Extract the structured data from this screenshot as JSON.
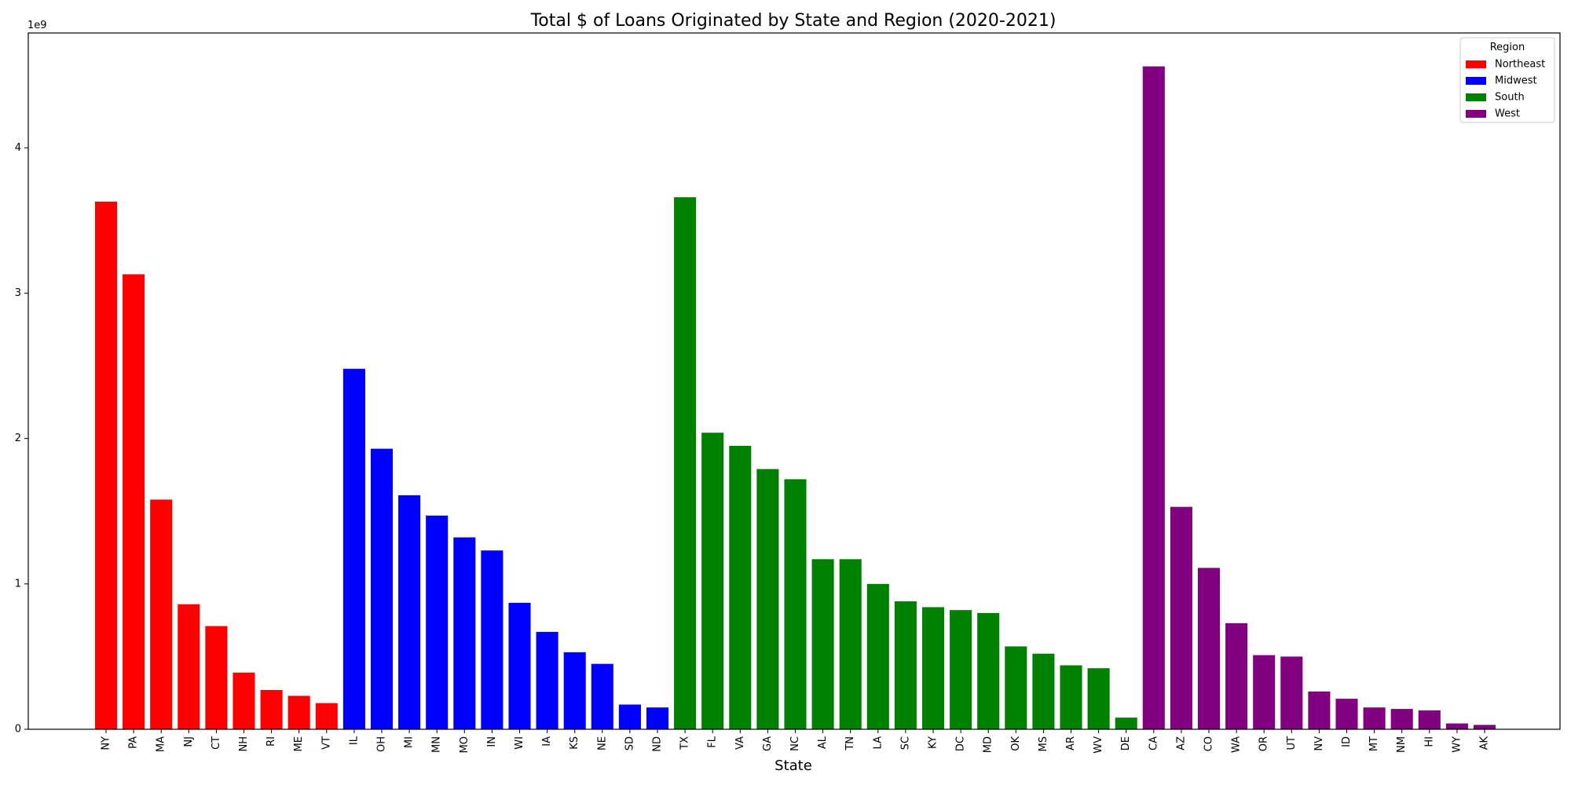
{
  "chart_data": {
    "type": "bar",
    "title": "Total $ of Loans Originated by State and Region (2020-2021)",
    "xlabel": "State",
    "ylabel": "",
    "y_scale_label": "1e9",
    "ylim": [
      0,
      4.79
    ],
    "yticks": [
      0,
      1,
      2,
      3,
      4
    ],
    "grid": false,
    "legend": {
      "title": "Region",
      "placement": "top-right",
      "entries": [
        {
          "name": "Northeast",
          "color": "#ff0000"
        },
        {
          "name": "Midwest",
          "color": "#0000ff"
        },
        {
          "name": "South",
          "color": "#008000"
        },
        {
          "name": "West",
          "color": "#800080"
        }
      ]
    },
    "categories": [
      "NY",
      "PA",
      "MA",
      "NJ",
      "CT",
      "NH",
      "RI",
      "ME",
      "VT",
      "IL",
      "OH",
      "MI",
      "MN",
      "MO",
      "IN",
      "WI",
      "IA",
      "KS",
      "NE",
      "SD",
      "ND",
      "TX",
      "FL",
      "VA",
      "GA",
      "NC",
      "AL",
      "TN",
      "LA",
      "SC",
      "KY",
      "DC",
      "MD",
      "OK",
      "MS",
      "AR",
      "WV",
      "DE",
      "CA",
      "AZ",
      "CO",
      "WA",
      "OR",
      "UT",
      "NV",
      "ID",
      "MT",
      "NM",
      "HI",
      "WY",
      "AK"
    ],
    "regions": [
      "Northeast",
      "Northeast",
      "Northeast",
      "Northeast",
      "Northeast",
      "Northeast",
      "Northeast",
      "Northeast",
      "Northeast",
      "Midwest",
      "Midwest",
      "Midwest",
      "Midwest",
      "Midwest",
      "Midwest",
      "Midwest",
      "Midwest",
      "Midwest",
      "Midwest",
      "Midwest",
      "Midwest",
      "South",
      "South",
      "South",
      "South",
      "South",
      "South",
      "South",
      "South",
      "South",
      "South",
      "South",
      "South",
      "South",
      "South",
      "South",
      "South",
      "South",
      "West",
      "West",
      "West",
      "West",
      "West",
      "West",
      "West",
      "West",
      "West",
      "West",
      "West",
      "West",
      "West"
    ],
    "values": [
      3.63,
      3.13,
      1.58,
      0.86,
      0.71,
      0.39,
      0.27,
      0.23,
      0.18,
      2.48,
      1.93,
      1.61,
      1.47,
      1.32,
      1.23,
      0.87,
      0.67,
      0.53,
      0.45,
      0.17,
      0.15,
      3.66,
      2.04,
      1.95,
      1.79,
      1.72,
      1.17,
      1.17,
      1.0,
      0.88,
      0.84,
      0.82,
      0.8,
      0.57,
      0.52,
      0.44,
      0.42,
      0.08,
      4.56,
      1.53,
      1.11,
      0.73,
      0.51,
      0.5,
      0.26,
      0.21,
      0.15,
      0.14,
      0.13,
      0.04,
      0.03
    ]
  }
}
